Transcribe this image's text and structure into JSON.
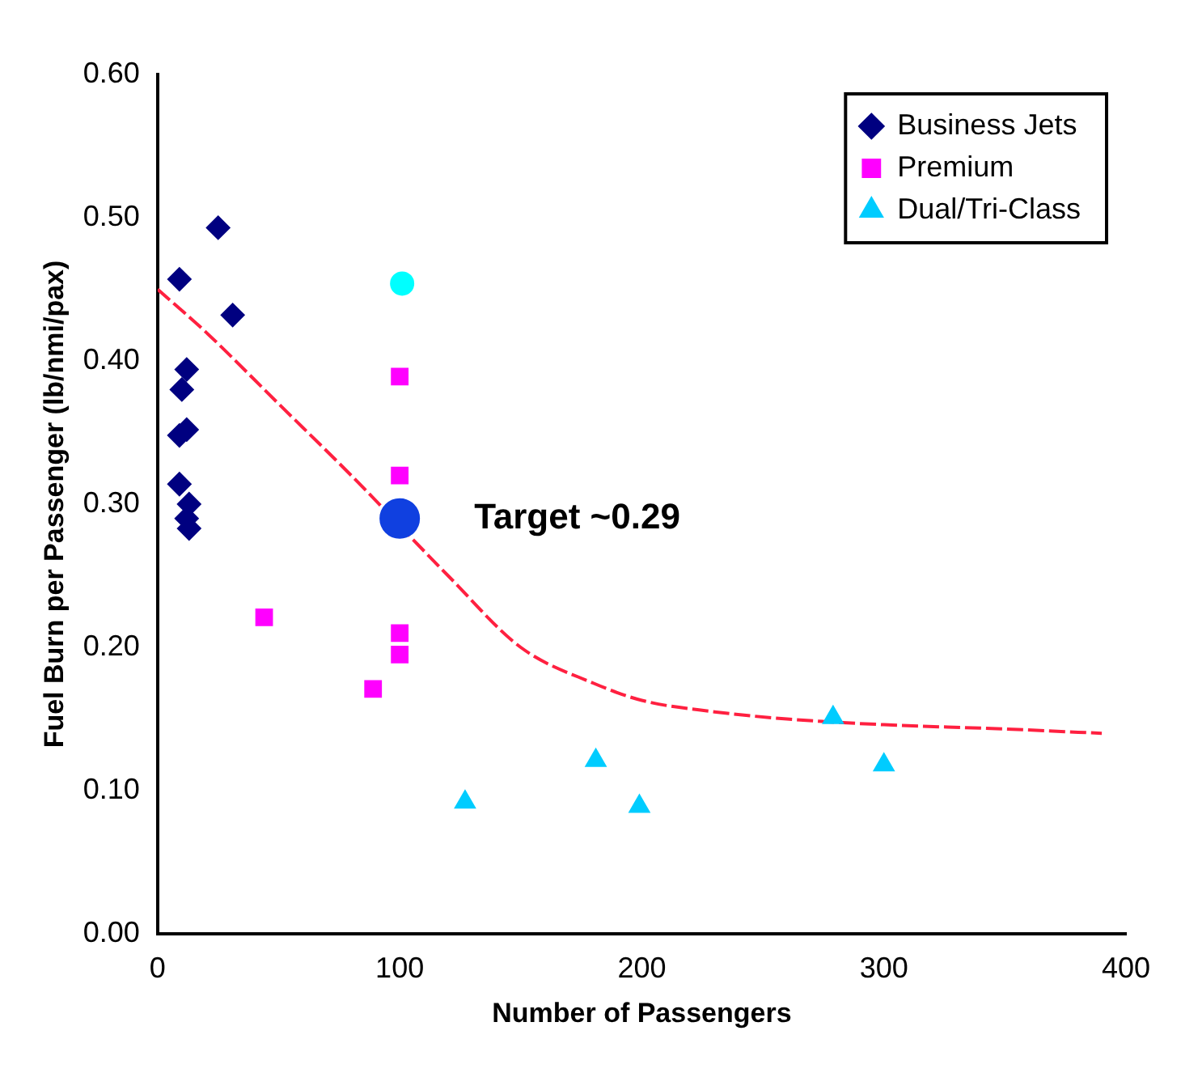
{
  "chart_data": {
    "type": "scatter",
    "xlabel": "Number of Passengers",
    "ylabel": "Fuel Burn per Passenger (lb/nmi/pax)",
    "xlim": [
      0,
      400
    ],
    "xticks": [
      0,
      100,
      200,
      300,
      400
    ],
    "ylim": [
      0,
      0.6
    ],
    "yticks": [
      {
        "value": 0,
        "label": "0.00"
      },
      {
        "value": 0.1,
        "label": "0.10"
      },
      {
        "value": 0.2,
        "label": "0.20"
      },
      {
        "value": 0.3,
        "label": "0.30"
      },
      {
        "value": 0.4,
        "label": "0.40"
      },
      {
        "value": 0.5,
        "label": "0.50"
      },
      {
        "value": 0.6,
        "label": "0.60"
      }
    ],
    "grid": false,
    "legend": "top right",
    "annotations": [
      {
        "text": "Target ~0.29",
        "x": 100,
        "y": 0.29
      }
    ],
    "series": [
      {
        "name": "Business Jets",
        "color": "#000080",
        "marker": "diamond",
        "x": [
          9,
          25,
          31,
          12,
          10,
          12,
          9,
          9,
          13,
          12,
          13
        ],
        "values": [
          0.457,
          0.493,
          0.432,
          0.394,
          0.38,
          0.352,
          0.348,
          0.314,
          0.3,
          0.29,
          0.283
        ]
      },
      {
        "name": "Premium",
        "color": "#ff00ff",
        "marker": "square",
        "x": [
          100,
          100,
          100,
          100,
          44,
          89
        ],
        "values": [
          0.389,
          0.32,
          0.21,
          0.195,
          0.221,
          0.171
        ]
      },
      {
        "name": "Dual/Tri-Class",
        "color": "#00ccff",
        "marker": "triangle",
        "x": [
          127,
          181,
          199,
          279,
          300
        ],
        "values": [
          0.092,
          0.121,
          0.089,
          0.151,
          0.118
        ]
      },
      {
        "color": "#00ffff",
        "marker": "circle",
        "x": [
          101
        ],
        "values": [
          0.454
        ]
      },
      {
        "color": "#1040e0",
        "marker": "circle",
        "x": [
          100
        ],
        "values": [
          0.29
        ]
      },
      {
        "type": "line",
        "color": "#ff2040",
        "line_style": "dashed",
        "marker": "none",
        "x": [
          0,
          20,
          50,
          80,
          100,
          120,
          150,
          180,
          200,
          230,
          260,
          300,
          350,
          390
        ],
        "values": [
          0.45,
          0.42,
          0.37,
          0.32,
          null,
          0.25,
          0.2,
          0.175,
          0.163,
          0.155,
          0.15,
          0.146,
          0.143,
          0.14
        ]
      }
    ]
  }
}
